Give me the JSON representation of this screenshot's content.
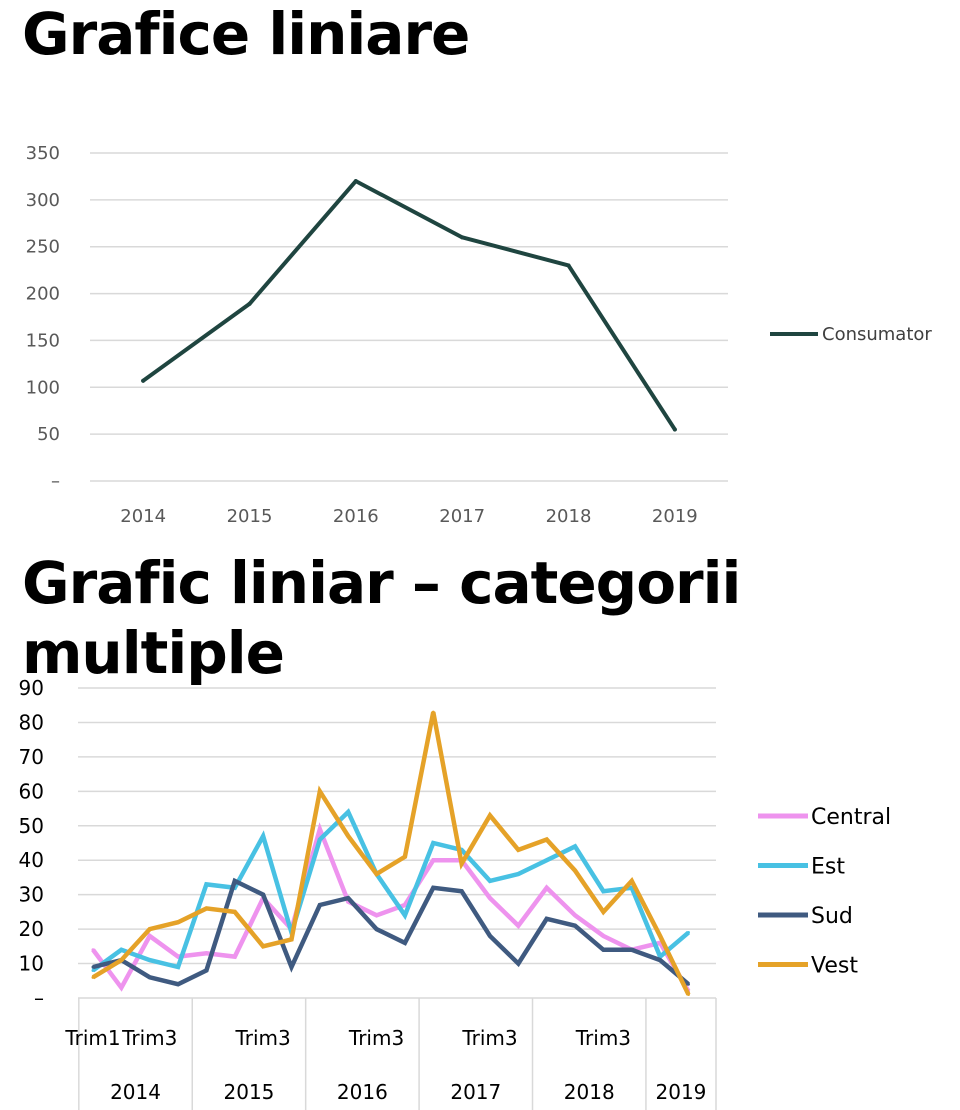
{
  "titles": {
    "single": "Grafice liniare",
    "multi": "Grafic liniar – categorii multiple"
  },
  "chart_data": [
    {
      "type": "line",
      "title": "Grafice liniare",
      "categories": [
        "2014",
        "2015",
        "2016",
        "2017",
        "2018",
        "2019"
      ],
      "series": [
        {
          "name": "Consumator",
          "color": "#1f4540",
          "values": [
            107,
            189,
            320,
            260,
            230,
            55
          ]
        }
      ],
      "yticks": [
        "–",
        "50",
        "100",
        "150",
        "200",
        "250",
        "300",
        "350"
      ],
      "ylim": [
        0,
        350
      ],
      "grid": true,
      "legend": "right"
    },
    {
      "type": "line",
      "title": "Grafic liniar – categorii multiple",
      "x_sublabels": [
        "Trim1",
        "",
        "Trim3",
        "",
        "",
        "",
        "Trim3",
        "",
        "",
        "",
        "Trim3",
        "",
        "",
        "",
        "Trim3",
        "",
        "",
        "",
        "Trim3",
        "",
        "",
        ""
      ],
      "x_groups": [
        "2014",
        "2015",
        "2016",
        "2017",
        "2018",
        "2019"
      ],
      "yticks": [
        "–",
        "10",
        "20",
        "30",
        "40",
        "50",
        "60",
        "70",
        "80",
        "90"
      ],
      "ylim": [
        0,
        90
      ],
      "grid": true,
      "legend": "right",
      "series": [
        {
          "name": "Central",
          "color": "#ee93ee",
          "values": [
            14,
            3,
            18,
            12,
            13,
            12,
            29,
            20,
            49,
            28,
            24,
            27,
            40,
            40,
            29,
            21,
            32,
            24,
            18,
            14,
            16,
            2
          ]
        },
        {
          "name": "Est",
          "color": "#48c1e3",
          "values": [
            8,
            14,
            11,
            9,
            33,
            32,
            47,
            19,
            46,
            54,
            36,
            24,
            45,
            43,
            34,
            36,
            40,
            44,
            31,
            32,
            12,
            19
          ]
        },
        {
          "name": "Sud",
          "color": "#3f5a80",
          "values": [
            9,
            11,
            6,
            4,
            8,
            34,
            30,
            9,
            27,
            29,
            20,
            16,
            32,
            31,
            18,
            10,
            23,
            21,
            14,
            14,
            11,
            4
          ]
        },
        {
          "name": "Vest",
          "color": "#e5a228",
          "values": [
            6,
            11,
            20,
            22,
            26,
            25,
            15,
            17,
            60,
            47,
            36,
            41,
            83,
            39,
            53,
            43,
            46,
            37,
            25,
            34,
            18,
            1
          ]
        }
      ]
    }
  ]
}
